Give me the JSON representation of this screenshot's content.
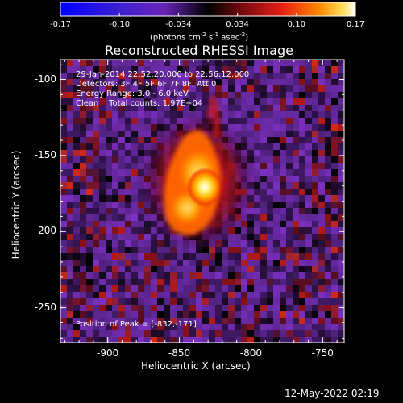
{
  "colorbar": {
    "tick_labels": [
      "-0.17",
      "-0.10",
      "-0.034",
      "0.034",
      "0.10",
      "0.17"
    ],
    "units_main": "(photons cm",
    "units_exp1": "-2",
    "units_mid": " s",
    "units_exp2": "-1",
    "units_mid2": " asec",
    "units_exp3": "-2",
    "units_end": ")"
  },
  "title": "Reconstructed RHESSI Image",
  "info": {
    "time_range": "29-Jan-2014 22:52:20.000 to 22:56:12.000",
    "detectors": "Detectors: 3F 4F 5F 6F 7F 8F, Att 0",
    "energy_range": "Energy Range: 3.0 - 6.0 keV",
    "method": "Clean    Total counts: 1.97E+04",
    "peak_position": "Position of Peak = [-832,-171]"
  },
  "axes": {
    "xlabel": "Heliocentric X (arcsec)",
    "ylabel": "Heliocentric Y (arcsec)",
    "xlim": [
      -933,
      -735
    ],
    "ylim": [
      -273,
      -87
    ],
    "xticks": [
      -900,
      -850,
      -800,
      -750
    ],
    "yticks": [
      -100,
      -150,
      -200,
      -250
    ],
    "xtick_labels": [
      "-900",
      "-850",
      "-800",
      "-750"
    ],
    "ytick_labels": [
      "-100",
      "-150",
      "-200",
      "-250"
    ]
  },
  "colors": {
    "background": "#000000",
    "negative": "#0000ff",
    "low_positive": "#7a2fb8",
    "mid": "#e01818",
    "high": "#ffd000",
    "peak": "#ffffff"
  },
  "footer": {
    "timestamp": "12-May-2022 02:19"
  }
}
